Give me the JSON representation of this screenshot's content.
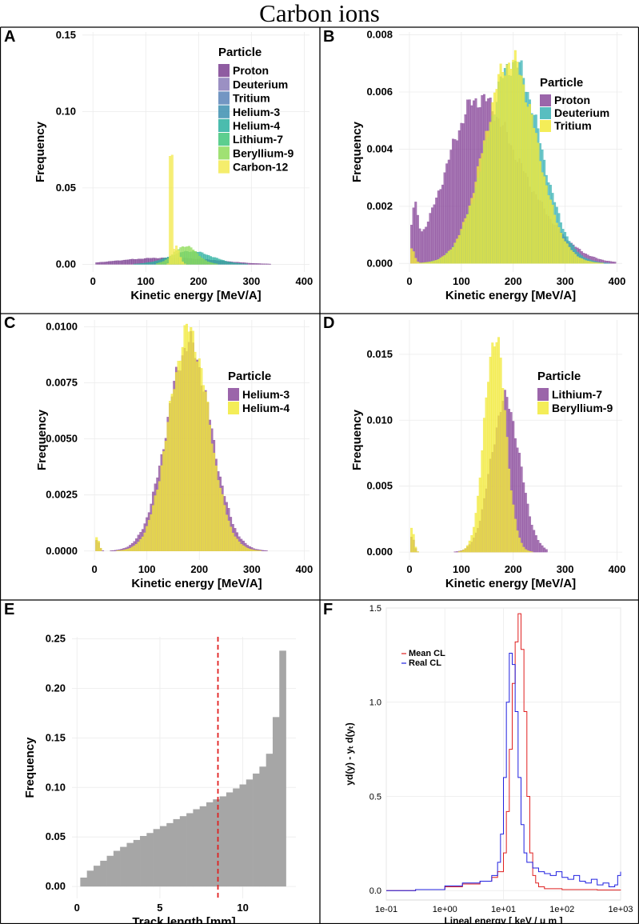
{
  "figure_title": "Carbon ions",
  "colors": {
    "Proton": "#7b3f91",
    "Deuterium": "#8a7cb8",
    "Tritium": "#5b84b8",
    "Helium-3": "#3d8fb0",
    "Helium-4": "#2cb0a0",
    "Lithium-7": "#41c57b",
    "Beryllium-9": "#8fdc5a",
    "Carbon-12": "#f3ea52",
    "yellow": "#f2ea3b",
    "purple": "#8a4a9b",
    "teal": "#3bb3b5",
    "gray": "#a6a6a6",
    "red": "#e02020",
    "blue": "#2020e0"
  },
  "chart_data": [
    {
      "panel": "A",
      "type": "bar",
      "xlabel": "Kinetic energy [MeV/A]",
      "ylabel": "Frequency",
      "xlim": [
        -20,
        410
      ],
      "ylim": [
        -0.005,
        0.152
      ],
      "xticks": [
        "0",
        "100",
        "200",
        "300",
        "400"
      ],
      "xtick_values": [
        0,
        100,
        200,
        300,
        400
      ],
      "yticks": [
        "0.00",
        "0.05",
        "0.10",
        "0.15"
      ],
      "ytick_values": [
        0,
        0.05,
        0.1,
        0.15
      ],
      "legend_title": "Particle",
      "legend": [
        "Proton",
        "Deuterium",
        "Tritium",
        "Helium-3",
        "Helium-4",
        "Lithium-7",
        "Beryllium-9",
        "Carbon-12"
      ],
      "series": [
        {
          "name": "Proton",
          "color": "#7b3f91",
          "peaks": [
            {
              "c": 110,
              "s": 70,
              "h": 0.0035
            },
            {
              "c": 210,
              "s": 60,
              "h": 0.002
            }
          ],
          "xmin": 5,
          "xmax": 395
        },
        {
          "name": "Helium-4",
          "color": "#2cb0a0",
          "peaks": [
            {
              "c": 185,
              "s": 40,
              "h": 0.0085
            }
          ],
          "xmin": 5,
          "xmax": 395
        },
        {
          "name": "Beryllium-9",
          "color": "#8fdc5a",
          "peaks": [
            {
              "c": 175,
              "s": 22,
              "h": 0.012
            }
          ],
          "xmin": 120,
          "xmax": 260
        },
        {
          "name": "Carbon-12",
          "color": "#f3ea52",
          "peaks": [
            {
              "c": 148,
              "s": 1.6,
              "h": 0.146
            },
            {
              "c": 158,
              "s": 6,
              "h": 0.012
            }
          ],
          "xmin": 100,
          "xmax": 230
        }
      ]
    },
    {
      "panel": "B",
      "type": "bar",
      "xlabel": "Kinetic energy [MeV/A]",
      "ylabel": "Frequency",
      "xlim": [
        -20,
        410
      ],
      "ylim": [
        -0.0003,
        0.0081
      ],
      "xticks": [
        "0",
        "100",
        "200",
        "300",
        "400"
      ],
      "xtick_values": [
        0,
        100,
        200,
        300,
        400
      ],
      "yticks": [
        "0.000",
        "0.002",
        "0.004",
        "0.006",
        "0.008"
      ],
      "ytick_values": [
        0,
        0.002,
        0.004,
        0.006,
        0.008
      ],
      "legend_title": "Particle",
      "legend": [
        "Proton",
        "Deuterium",
        "Tritium"
      ],
      "legend_colors": [
        "#8a4a9b",
        "#3bb3b5",
        "#f2ea3b"
      ],
      "series": [
        {
          "name": "Proton",
          "color": "#8a4a9b",
          "peaks": [
            {
              "c": 10,
              "s": 6,
              "h": 0.0014
            },
            {
              "c": 120,
              "s": 55,
              "h": 0.0043
            },
            {
              "c": 200,
              "s": 70,
              "h": 0.0025
            }
          ],
          "xmin": 2,
          "xmax": 395
        },
        {
          "name": "Deuterium",
          "color": "#3bb3b5",
          "peaks": [
            {
              "c": 200,
              "s": 52,
              "h": 0.007
            }
          ],
          "xmin": 2,
          "xmax": 395
        },
        {
          "name": "Tritium",
          "color": "#f2ea3b",
          "peaks": [
            {
              "c": 195,
              "s": 50,
              "h": 0.0071
            },
            {
              "c": 5,
              "s": 5,
              "h": 0.0005
            }
          ],
          "xmin": 2,
          "xmax": 395
        }
      ]
    },
    {
      "panel": "C",
      "type": "bar",
      "xlabel": "Kinetic energy [MeV/A]",
      "ylabel": "Frequency",
      "xlim": [
        -20,
        410
      ],
      "ylim": [
        -0.0004,
        0.0103
      ],
      "xticks": [
        "0",
        "100",
        "200",
        "300",
        "400"
      ],
      "xtick_values": [
        0,
        100,
        200,
        300,
        400
      ],
      "yticks": [
        "0.0000",
        "0.0025",
        "0.0050",
        "0.0075",
        "0.0100"
      ],
      "ytick_values": [
        0,
        0.0025,
        0.005,
        0.0075,
        0.01
      ],
      "legend_title": "Particle",
      "legend": [
        "Helium-3",
        "Helium-4"
      ],
      "legend_colors": [
        "#8a4a9b",
        "#f2ea3b"
      ],
      "series": [
        {
          "name": "Helium-3",
          "color": "#8a4a9b",
          "peaks": [
            {
              "c": 180,
              "s": 42,
              "h": 0.0092
            },
            {
              "c": 5,
              "s": 4,
              "h": 0.0005
            }
          ],
          "xmin": 2,
          "xmax": 380
        },
        {
          "name": "Helium-4",
          "color": "#f2ea3b",
          "peaks": [
            {
              "c": 180,
              "s": 38,
              "h": 0.0098
            },
            {
              "c": 5,
              "s": 4,
              "h": 0.0006
            }
          ],
          "xmin": 2,
          "xmax": 380
        }
      ]
    },
    {
      "panel": "D",
      "type": "bar",
      "xlabel": "Kinetic energy [MeV/A]",
      "ylabel": "Frequency",
      "xlim": [
        -20,
        410
      ],
      "ylim": [
        -0.0006,
        0.0176
      ],
      "xticks": [
        "0",
        "100",
        "200",
        "300",
        "400"
      ],
      "xtick_values": [
        0,
        100,
        200,
        300,
        400
      ],
      "yticks": [
        "0.000",
        "0.005",
        "0.010",
        "0.015"
      ],
      "ytick_values": [
        0,
        0.005,
        0.01,
        0.015
      ],
      "legend_title": "Particle",
      "legend": [
        "Lithium-7",
        "Beryllium-9"
      ],
      "legend_colors": [
        "#8a4a9b",
        "#f2ea3b"
      ],
      "series": [
        {
          "name": "Lithium-7",
          "color": "#8a4a9b",
          "peaks": [
            {
              "c": 185,
              "s": 28,
              "h": 0.0115
            },
            {
              "c": 5,
              "s": 4,
              "h": 0.0012
            }
          ],
          "xmin": 2,
          "xmax": 265
        },
        {
          "name": "Beryllium-9",
          "color": "#f2ea3b",
          "peaks": [
            {
              "c": 165,
              "s": 20,
              "h": 0.0165
            },
            {
              "c": 5,
              "s": 4,
              "h": 0.0018
            }
          ],
          "xmin": 2,
          "xmax": 400
        }
      ]
    },
    {
      "panel": "E",
      "type": "bar",
      "xlabel": "Track length [mm]",
      "ylabel": "Frequency",
      "xlim": [
        -0.3,
        13.2
      ],
      "ylim": [
        -0.012,
        0.252
      ],
      "xticks": [
        "0",
        "5",
        "10"
      ],
      "xtick_values": [
        0,
        5,
        10
      ],
      "yticks": [
        "0.00",
        "0.05",
        "0.10",
        "0.15",
        "0.20",
        "0.25"
      ],
      "ytick_values": [
        0,
        0.05,
        0.1,
        0.15,
        0.2,
        0.25
      ],
      "bin_width": 0.4,
      "bin_starts": [
        0.2,
        0.6,
        1.0,
        1.4,
        1.8,
        2.2,
        2.6,
        3.0,
        3.4,
        3.8,
        4.2,
        4.6,
        5.0,
        5.4,
        5.8,
        6.2,
        6.6,
        7.0,
        7.4,
        7.8,
        8.2,
        8.6,
        9.0,
        9.4,
        9.8,
        10.2,
        10.6,
        11.0,
        11.4,
        11.8,
        12.2
      ],
      "values": [
        0.009,
        0.016,
        0.021,
        0.026,
        0.031,
        0.036,
        0.04,
        0.044,
        0.047,
        0.051,
        0.054,
        0.058,
        0.061,
        0.064,
        0.068,
        0.071,
        0.074,
        0.078,
        0.081,
        0.085,
        0.088,
        0.091,
        0.095,
        0.099,
        0.103,
        0.108,
        0.114,
        0.121,
        0.134,
        0.171,
        0.238
      ],
      "vline": 8.5
    },
    {
      "panel": "F",
      "type": "line",
      "xlabel": "Lineal energy [ keV / μ m ]",
      "ylabel": "yd(y) - yₜ d(yₜ)",
      "xscale": "log",
      "xlim_log10": [
        -1,
        3
      ],
      "ylim": [
        -0.05,
        1.5
      ],
      "xticks": [
        "1e-01",
        "1e+00",
        "1e+01",
        "1e+02",
        "1e+03"
      ],
      "xtick_log10": [
        -1,
        0,
        1,
        2,
        3
      ],
      "yticks": [
        "0.0",
        "0.5",
        "1.0",
        "1.5"
      ],
      "ytick_values": [
        0,
        0.5,
        1.0,
        1.5
      ],
      "legend": [
        "Mean CL",
        "Real CL"
      ],
      "series": [
        {
          "name": "Mean CL",
          "color": "#e02020",
          "x_log10": [
            -1,
            -0.5,
            0,
            0.3,
            0.6,
            0.8,
            0.9,
            1.0,
            1.05,
            1.1,
            1.15,
            1.2,
            1.25,
            1.3,
            1.35,
            1.4,
            1.45,
            1.5,
            1.55,
            1.6,
            1.7,
            1.8,
            2.0,
            2.3,
            2.6,
            3.0
          ],
          "y": [
            0,
            0.005,
            0.02,
            0.035,
            0.05,
            0.07,
            0.1,
            0.2,
            0.42,
            0.75,
            1.1,
            1.32,
            1.47,
            1.28,
            0.95,
            0.5,
            0.2,
            0.08,
            0.04,
            0.02,
            0.01,
            0.01,
            0.005,
            0.005,
            0.003,
            0.002
          ]
        },
        {
          "name": "Real CL",
          "color": "#2020e0",
          "x_log10": [
            -1,
            -0.5,
            0,
            0.3,
            0.6,
            0.8,
            0.9,
            0.95,
            1.0,
            1.05,
            1.1,
            1.15,
            1.2,
            1.25,
            1.3,
            1.35,
            1.4,
            1.5,
            1.6,
            1.7,
            1.8,
            1.9,
            2.0,
            2.1,
            2.2,
            2.3,
            2.4,
            2.5,
            2.6,
            2.7,
            2.8,
            2.9,
            2.95,
            3.0
          ],
          "y": [
            0,
            0.005,
            0.025,
            0.04,
            0.05,
            0.08,
            0.15,
            0.3,
            0.6,
            1.0,
            1.26,
            1.2,
            0.95,
            0.6,
            0.35,
            0.2,
            0.15,
            0.12,
            0.1,
            0.09,
            0.08,
            0.1,
            0.07,
            0.06,
            0.08,
            0.05,
            0.04,
            0.06,
            0.03,
            0.04,
            0.02,
            0.03,
            0.08,
            0.1
          ]
        }
      ]
    }
  ]
}
